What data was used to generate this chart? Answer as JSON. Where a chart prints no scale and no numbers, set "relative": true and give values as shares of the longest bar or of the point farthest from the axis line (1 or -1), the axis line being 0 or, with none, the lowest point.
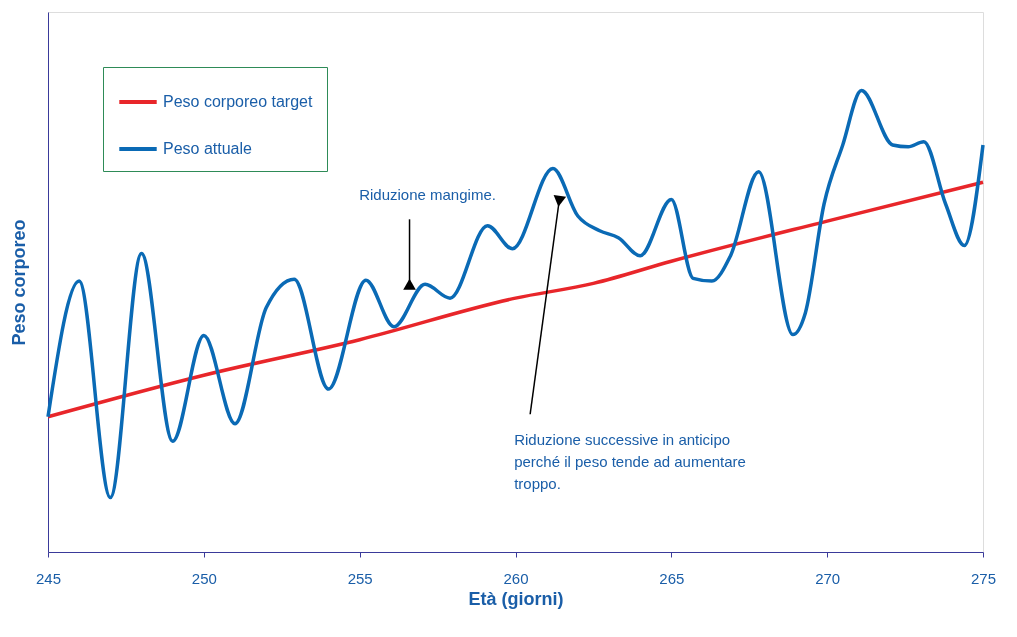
{
  "chart_data": {
    "type": "line",
    "xlabel": "Età (giorni)",
    "ylabel": "Peso corporeo",
    "relative": true,
    "xlim": [
      245,
      275
    ],
    "xticks": [
      245,
      250,
      255,
      260,
      265,
      270,
      275
    ],
    "legend": "top left",
    "series": [
      {
        "name": "Peso corporeo target",
        "color": "#e8262a",
        "x": [
          245,
          250,
          255,
          260,
          262.5,
          265,
          270,
          275
        ],
        "values": [
          0.293,
          0.383,
          0.46,
          0.55,
          0.582,
          0.63,
          0.717,
          0.801
        ]
      },
      {
        "name": "Peso attuale",
        "color": "#0a6ab5",
        "x": [
          245,
          246,
          247,
          248,
          249,
          250,
          251,
          252,
          252.9,
          254,
          255.2,
          256.1,
          257.1,
          257.9,
          259.1,
          259.9,
          261.2,
          262,
          262.7,
          263.3,
          264,
          265,
          265.7,
          266.3,
          266.9,
          267.8,
          268.9,
          269.3,
          269.9,
          270.5,
          271.1,
          272.1,
          272.6,
          273.1,
          273.8,
          274.4,
          275
        ],
        "values": [
          0.293,
          0.587,
          0.118,
          0.647,
          0.24,
          0.469,
          0.278,
          0.529,
          0.591,
          0.353,
          0.589,
          0.488,
          0.58,
          0.55,
          0.707,
          0.657,
          0.831,
          0.728,
          0.696,
          0.681,
          0.642,
          0.764,
          0.593,
          0.587,
          0.642,
          0.824,
          0.471,
          0.518,
          0.754,
          0.882,
          1,
          0.882,
          0.878,
          0.889,
          0.754,
          0.664,
          0.882
        ]
      }
    ],
    "annotations": [
      {
        "text": "Riduzione mangime.",
        "x": 256.6,
        "y": 0.58
      },
      {
        "text": "Riduzione successive in anticipo\nperché il peso tende ad aumentare\ntroppo.",
        "x": 261.4,
        "y": 0.76
      }
    ]
  }
}
